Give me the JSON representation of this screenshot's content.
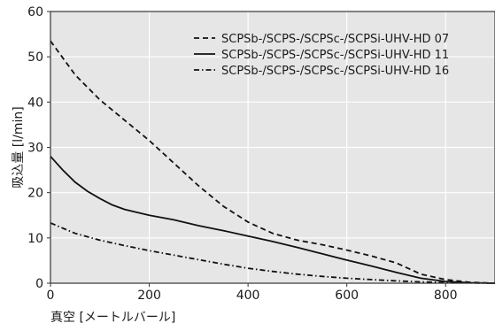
{
  "chart_data": {
    "type": "line",
    "title": "",
    "xlabel": "真空 [メートルバール]",
    "ylabel": "吸込量 [l/min]",
    "xlim": [
      0,
      900
    ],
    "ylim": [
      0,
      60
    ],
    "x_ticks": [
      "0",
      "200",
      "400",
      "600",
      "800"
    ],
    "y_ticks": [
      "0",
      "10",
      "20",
      "30",
      "40",
      "50",
      "60"
    ],
    "grid": true,
    "legend_position": "top-right",
    "series": [
      {
        "name": "SCPSb-/SCPS-/SCPSc-/SCPSi-UHV-HD 07",
        "dash": "dashed",
        "x": [
          0,
          50,
          100,
          150,
          200,
          250,
          300,
          350,
          400,
          450,
          500,
          550,
          600,
          650,
          700,
          750,
          800,
          850,
          900
        ],
        "values": [
          53.5,
          46,
          40.5,
          36,
          31.5,
          26.5,
          21.5,
          17,
          13.5,
          11,
          9.5,
          8.5,
          7.3,
          6,
          4.5,
          2,
          0.8,
          0.2,
          0
        ]
      },
      {
        "name": "SCPSb-/SCPS-/SCPSc-/SCPSi-UHV-HD 11",
        "dash": "solid",
        "x": [
          0,
          25,
          50,
          75,
          100,
          125,
          150,
          200,
          250,
          300,
          350,
          400,
          450,
          500,
          550,
          600,
          650,
          700,
          750,
          800,
          850,
          900
        ],
        "values": [
          28,
          25,
          22.3,
          20.3,
          18.7,
          17.3,
          16.3,
          15,
          14,
          12.7,
          11.6,
          10.4,
          9.2,
          7.9,
          6.5,
          5.1,
          3.8,
          2.4,
          1.1,
          0.4,
          0.1,
          0
        ]
      },
      {
        "name": "SCPSb-/SCPS-/SCPSc-/SCPSi-UHV-HD 16",
        "dash": "dashdot",
        "x": [
          0,
          50,
          100,
          150,
          200,
          250,
          300,
          350,
          400,
          450,
          500,
          550,
          600,
          650,
          700,
          750,
          800,
          850,
          900
        ],
        "values": [
          13.3,
          11,
          9.5,
          8.3,
          7.2,
          6.2,
          5.2,
          4.2,
          3.3,
          2.6,
          2,
          1.5,
          1.1,
          0.8,
          0.5,
          0.3,
          0.15,
          0.05,
          0
        ]
      }
    ]
  }
}
